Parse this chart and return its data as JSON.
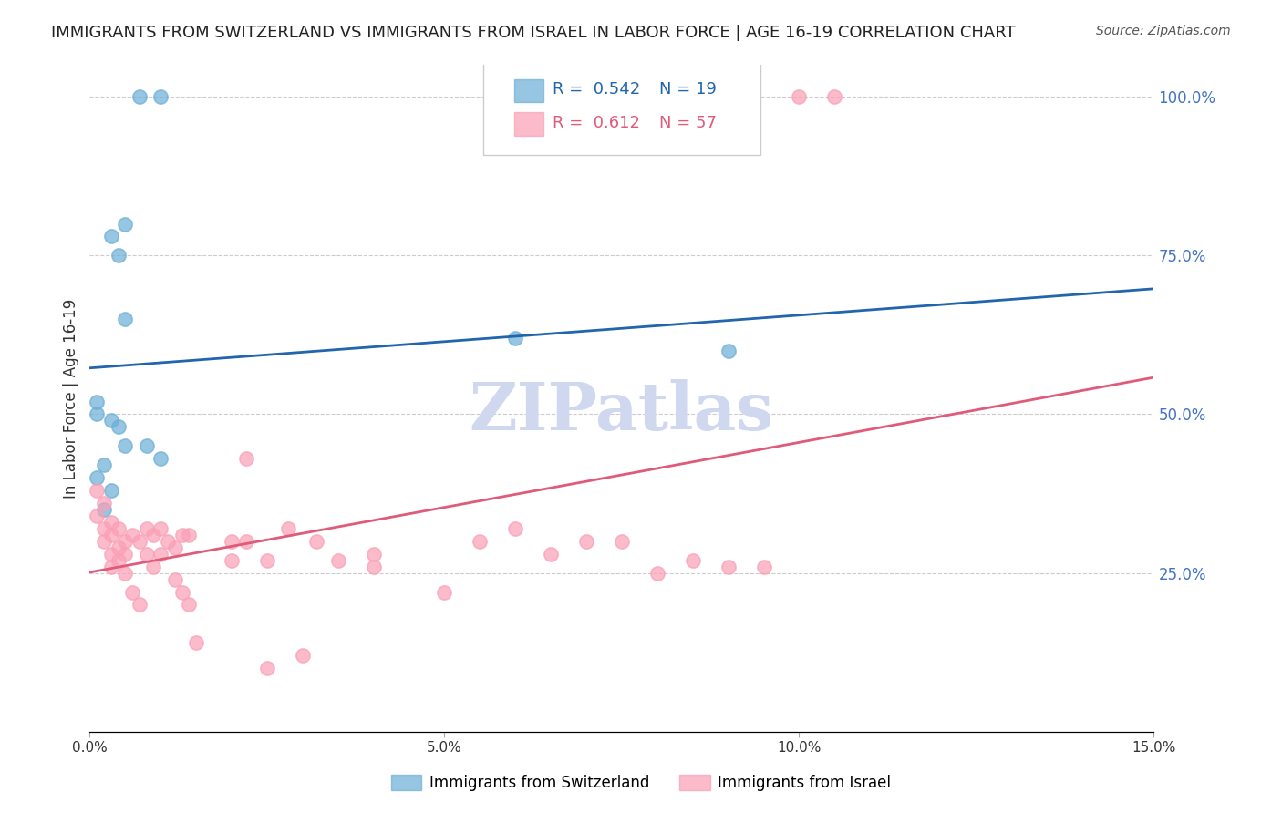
{
  "title": "IMMIGRANTS FROM SWITZERLAND VS IMMIGRANTS FROM ISRAEL IN LABOR FORCE | AGE 16-19 CORRELATION CHART",
  "source": "Source: ZipAtlas.com",
  "xlabel": "",
  "ylabel": "In Labor Force | Age 16-19",
  "xlim": [
    0.0,
    0.15
  ],
  "ylim": [
    0.0,
    1.05
  ],
  "xticks": [
    0.0,
    0.05,
    0.1,
    0.15
  ],
  "xticklabels": [
    "0.0%",
    "5.0%",
    "10.0%",
    "15.0%"
  ],
  "yticks_right": [
    0.25,
    0.5,
    0.75,
    1.0
  ],
  "ytick_right_labels": [
    "25.0%",
    "50.0%",
    "75.0%",
    "100.0%"
  ],
  "legend_R_blue": "0.542",
  "legend_N_blue": "19",
  "legend_R_pink": "0.612",
  "legend_N_pink": "57",
  "blue_color": "#6baed6",
  "pink_color": "#fa9fb5",
  "blue_line_color": "#2166ac",
  "pink_line_color": "#e05a7a",
  "background_color": "#ffffff",
  "watermark": "ZIPatlas",
  "watermark_color": "#d0d8f0",
  "swiss_x": [
    0.001,
    0.002,
    0.003,
    0.002,
    0.001,
    0.003,
    0.001,
    0.004,
    0.005,
    0.003,
    0.004,
    0.005,
    0.01,
    0.01,
    0.007,
    0.005,
    0.008,
    0.09,
    0.06
  ],
  "swiss_y": [
    0.4,
    0.42,
    0.38,
    0.35,
    0.5,
    0.49,
    0.52,
    0.48,
    0.8,
    0.78,
    0.75,
    0.45,
    0.43,
    1.0,
    1.0,
    0.65,
    0.45,
    0.6,
    0.62
  ],
  "israel_x": [
    0.001,
    0.001,
    0.002,
    0.002,
    0.002,
    0.003,
    0.003,
    0.003,
    0.003,
    0.004,
    0.004,
    0.004,
    0.005,
    0.005,
    0.005,
    0.006,
    0.006,
    0.007,
    0.007,
    0.008,
    0.008,
    0.009,
    0.009,
    0.01,
    0.01,
    0.011,
    0.012,
    0.012,
    0.013,
    0.013,
    0.014,
    0.014,
    0.015,
    0.02,
    0.02,
    0.022,
    0.022,
    0.025,
    0.025,
    0.028,
    0.03,
    0.032,
    0.035,
    0.04,
    0.04,
    0.05,
    0.055,
    0.06,
    0.065,
    0.07,
    0.075,
    0.08,
    0.085,
    0.09,
    0.095,
    0.1,
    0.105
  ],
  "israel_y": [
    0.38,
    0.34,
    0.36,
    0.32,
    0.3,
    0.28,
    0.31,
    0.33,
    0.26,
    0.29,
    0.27,
    0.32,
    0.25,
    0.3,
    0.28,
    0.31,
    0.22,
    0.2,
    0.3,
    0.32,
    0.28,
    0.26,
    0.31,
    0.28,
    0.32,
    0.3,
    0.24,
    0.29,
    0.22,
    0.31,
    0.31,
    0.2,
    0.14,
    0.3,
    0.27,
    0.43,
    0.3,
    0.1,
    0.27,
    0.32,
    0.12,
    0.3,
    0.27,
    0.28,
    0.26,
    0.22,
    0.3,
    0.32,
    0.28,
    0.3,
    0.3,
    0.25,
    0.27,
    0.26,
    0.26,
    1.0,
    1.0
  ],
  "title_fontsize": 13,
  "axis_label_fontsize": 12,
  "tick_fontsize": 11,
  "legend_fontsize": 13,
  "source_fontsize": 10
}
